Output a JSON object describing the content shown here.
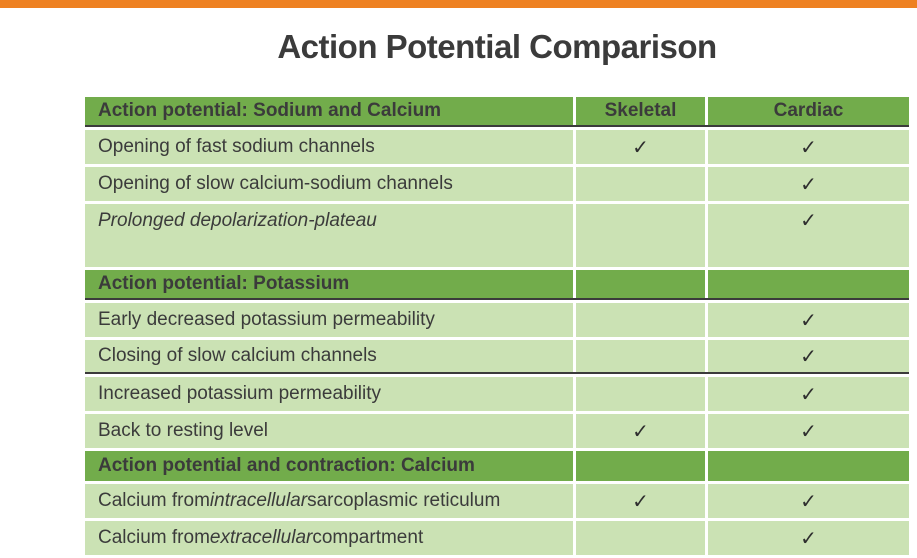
{
  "slide": {
    "title": "Action Potential Comparison",
    "check_glyph": "✓",
    "colors": {
      "orange": "#EE8122",
      "green": "#72AC4B",
      "light": "#CBE2B4",
      "dark": "#3B3B3B",
      "border": "#3B3B3B"
    }
  },
  "table": {
    "rows": [
      {
        "kind": "header",
        "parts": [
          {
            "t": "Action potential: Sodium and Calcium"
          }
        ],
        "col2_label": "Skeletal",
        "col3_label": "Cardiac",
        "border_bottom": true
      },
      {
        "kind": "item",
        "parts": [
          {
            "t": "Opening of fast sodium channels"
          }
        ],
        "skeletal": true,
        "cardiac": true
      },
      {
        "kind": "item",
        "parts": [
          {
            "t": "Opening of slow calcium-sodium channels"
          }
        ],
        "skeletal": false,
        "cardiac": true
      },
      {
        "kind": "item",
        "parts": [
          {
            "t": "Prolonged depolarization-plateau",
            "i": true
          }
        ],
        "skeletal": false,
        "cardiac": true,
        "tall": true
      },
      {
        "kind": "header",
        "parts": [
          {
            "t": "Action potential: Potassium"
          }
        ],
        "col2_label": "",
        "col3_label": "",
        "border_bottom": true
      },
      {
        "kind": "item",
        "parts": [
          {
            "t": "Early decreased potassium permeability"
          }
        ],
        "skeletal": false,
        "cardiac": true
      },
      {
        "kind": "item",
        "parts": [
          {
            "t": "Closing of slow calcium channels"
          }
        ],
        "skeletal": false,
        "cardiac": true,
        "border_bottom": true
      },
      {
        "kind": "item",
        "parts": [
          {
            "t": "Increased potassium permeability"
          }
        ],
        "skeletal": false,
        "cardiac": true
      },
      {
        "kind": "item",
        "parts": [
          {
            "t": "Back to resting level"
          }
        ],
        "skeletal": true,
        "cardiac": true
      },
      {
        "kind": "header",
        "parts": [
          {
            "t": "Action potential and contraction: Calcium"
          }
        ],
        "col2_label": "",
        "col3_label": ""
      },
      {
        "kind": "item",
        "parts": [
          {
            "t": "Calcium from "
          },
          {
            "t": "intracellular",
            "i": true
          },
          {
            "t": " sarcoplasmic reticulum"
          }
        ],
        "skeletal": true,
        "cardiac": true
      },
      {
        "kind": "item",
        "parts": [
          {
            "t": "Calcium from "
          },
          {
            "t": "extracellular",
            "i": true
          },
          {
            "t": " compartment"
          }
        ],
        "skeletal": false,
        "cardiac": true
      }
    ]
  }
}
